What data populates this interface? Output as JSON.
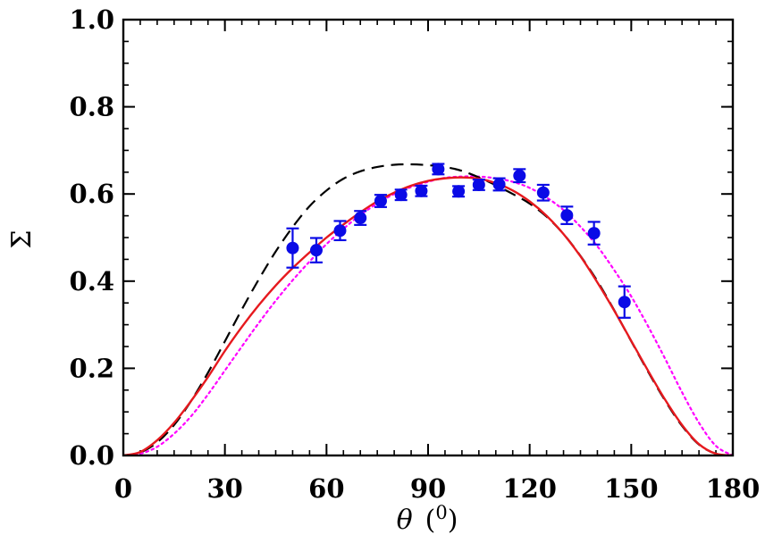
{
  "chart_data": {
    "type": "scatter",
    "title": "",
    "xlabel_symbol": "θ",
    "xlabel_unit_open": "(",
    "xlabel_unit_sup": "0",
    "xlabel_unit_close": ")",
    "ylabel": "Σ",
    "xlim": [
      0,
      180
    ],
    "ylim": [
      0,
      1.0
    ],
    "x_major_ticks": [
      0,
      30,
      60,
      90,
      120,
      150,
      180
    ],
    "x_tick_labels": [
      "0",
      "30",
      "60",
      "90",
      "120",
      "150",
      "180"
    ],
    "y_major_ticks": [
      0,
      0.2,
      0.4,
      0.6,
      0.8,
      1.0
    ],
    "y_tick_labels": [
      "0.0",
      "0.2",
      "0.4",
      "0.6",
      "0.8",
      "1.0"
    ],
    "x_minor_step": 5,
    "y_minor_step": 0.05,
    "grid": false,
    "colors": {
      "data_points": "#0a0ae6",
      "solid": "#e6191e",
      "dashed": "#000000",
      "dotted": "#ff00ff"
    },
    "points": [
      {
        "x": 50,
        "y": 0.476,
        "err": 0.045
      },
      {
        "x": 57,
        "y": 0.471,
        "err": 0.028
      },
      {
        "x": 64,
        "y": 0.516,
        "err": 0.022
      },
      {
        "x": 70,
        "y": 0.545,
        "err": 0.016
      },
      {
        "x": 76,
        "y": 0.584,
        "err": 0.014
      },
      {
        "x": 82,
        "y": 0.598,
        "err": 0.012
      },
      {
        "x": 88,
        "y": 0.607,
        "err": 0.012
      },
      {
        "x": 93,
        "y": 0.657,
        "err": 0.012
      },
      {
        "x": 99,
        "y": 0.606,
        "err": 0.012
      },
      {
        "x": 105,
        "y": 0.621,
        "err": 0.012
      },
      {
        "x": 111,
        "y": 0.622,
        "err": 0.014
      },
      {
        "x": 117,
        "y": 0.642,
        "err": 0.015
      },
      {
        "x": 124,
        "y": 0.603,
        "err": 0.018
      },
      {
        "x": 131,
        "y": 0.551,
        "err": 0.02
      },
      {
        "x": 139,
        "y": 0.51,
        "err": 0.026
      },
      {
        "x": 148,
        "y": 0.352,
        "err": 0.036
      }
    ],
    "series": [
      {
        "name": "solid",
        "style": "solid",
        "x": [
          0,
          5,
          10,
          15,
          20,
          25,
          30,
          35,
          40,
          45,
          50,
          55,
          60,
          65,
          70,
          75,
          80,
          85,
          90,
          95,
          100,
          105,
          110,
          115,
          120,
          125,
          130,
          135,
          140,
          145,
          150,
          155,
          160,
          165,
          170,
          175,
          180
        ],
        "y": [
          0,
          0.008,
          0.035,
          0.075,
          0.125,
          0.18,
          0.24,
          0.295,
          0.345,
          0.39,
          0.43,
          0.466,
          0.5,
          0.53,
          0.558,
          0.583,
          0.603,
          0.619,
          0.63,
          0.636,
          0.638,
          0.635,
          0.625,
          0.608,
          0.583,
          0.55,
          0.508,
          0.457,
          0.397,
          0.332,
          0.263,
          0.194,
          0.128,
          0.07,
          0.026,
          0.004,
          0
        ]
      },
      {
        "name": "dashed",
        "style": "dashed",
        "x": [
          0,
          5,
          10,
          15,
          20,
          25,
          30,
          35,
          40,
          45,
          50,
          55,
          60,
          65,
          70,
          75,
          80,
          85,
          90,
          95,
          100,
          105,
          110,
          115,
          120,
          125,
          130,
          135,
          140,
          145,
          150,
          155,
          160,
          165,
          170,
          175,
          180
        ],
        "y": [
          0,
          0.007,
          0.03,
          0.07,
          0.125,
          0.19,
          0.262,
          0.335,
          0.404,
          0.468,
          0.524,
          0.572,
          0.608,
          0.635,
          0.652,
          0.662,
          0.667,
          0.668,
          0.666,
          0.662,
          0.653,
          0.638,
          0.62,
          0.6,
          0.578,
          0.548,
          0.508,
          0.458,
          0.4,
          0.333,
          0.262,
          0.192,
          0.126,
          0.068,
          0.025,
          0.004,
          0
        ]
      },
      {
        "name": "dotted",
        "style": "dotted",
        "x": [
          0,
          5,
          10,
          15,
          20,
          25,
          30,
          35,
          40,
          45,
          50,
          55,
          60,
          65,
          70,
          75,
          80,
          85,
          90,
          95,
          100,
          105,
          110,
          115,
          120,
          125,
          130,
          135,
          140,
          145,
          150,
          155,
          160,
          165,
          170,
          175,
          180
        ],
        "y": [
          0,
          0.004,
          0.02,
          0.05,
          0.09,
          0.14,
          0.195,
          0.25,
          0.304,
          0.355,
          0.402,
          0.445,
          0.485,
          0.52,
          0.552,
          0.578,
          0.6,
          0.616,
          0.628,
          0.637,
          0.64,
          0.64,
          0.636,
          0.628,
          0.614,
          0.592,
          0.563,
          0.525,
          0.48,
          0.425,
          0.365,
          0.296,
          0.222,
          0.145,
          0.075,
          0.022,
          0
        ]
      }
    ]
  }
}
